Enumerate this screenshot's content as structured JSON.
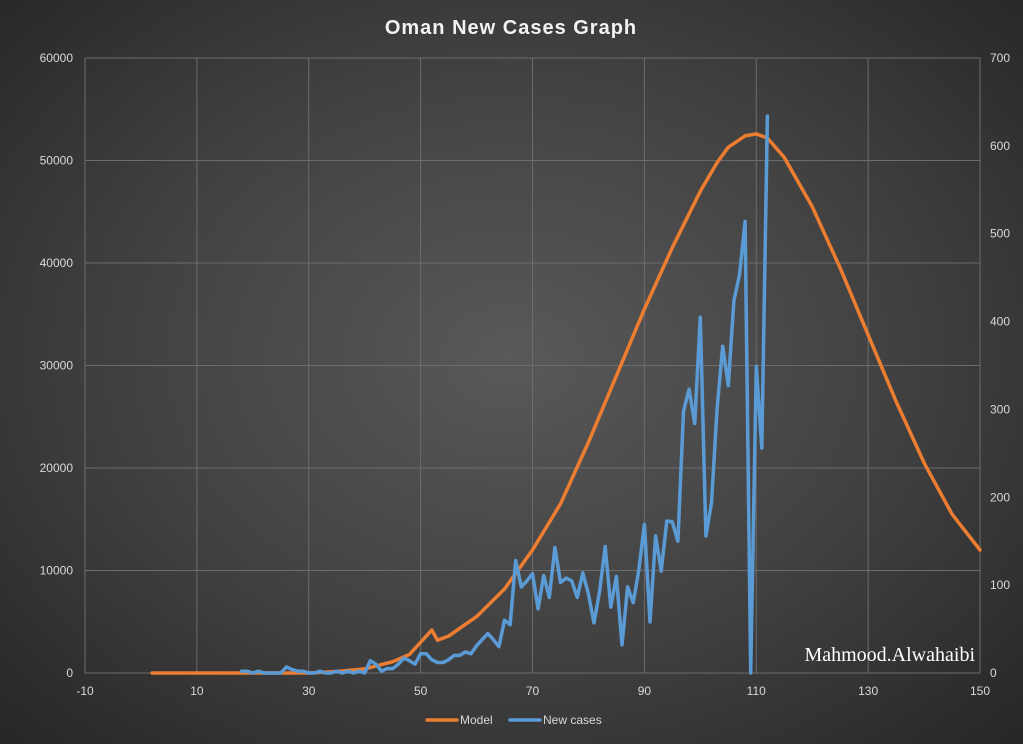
{
  "chart_data": {
    "type": "line",
    "title": "Oman New Cases Graph",
    "xlabel": "",
    "ylabel": "",
    "y2label": "",
    "xlim": [
      -10,
      150
    ],
    "x_ticks": [
      -10,
      10,
      30,
      50,
      70,
      90,
      110,
      130,
      150
    ],
    "ylim": [
      0,
      60000
    ],
    "y_ticks": [
      0,
      10000,
      20000,
      30000,
      40000,
      50000,
      60000
    ],
    "y2lim": [
      0,
      700
    ],
    "y2_ticks": [
      0,
      100,
      200,
      300,
      400,
      500,
      600,
      700
    ],
    "grid": true,
    "legend_position": "bottom",
    "series": [
      {
        "name": "Model",
        "axis": "left",
        "color": "#ED7D31",
        "x": [
          2,
          10,
          20,
          30,
          35,
          40,
          45,
          48,
          50,
          52,
          53,
          55,
          60,
          65,
          70,
          75,
          80,
          85,
          90,
          95,
          100,
          103,
          105,
          108,
          110,
          112,
          115,
          120,
          125,
          130,
          135,
          140,
          145,
          150
        ],
        "y": [
          0,
          0,
          0,
          0,
          150,
          400,
          1100,
          1800,
          3000,
          4200,
          3200,
          3600,
          5500,
          8200,
          12000,
          16500,
          22500,
          29000,
          35500,
          41500,
          47000,
          49800,
          51300,
          52400,
          52600,
          52200,
          50300,
          45500,
          39500,
          33000,
          26500,
          20500,
          15500,
          12000
        ]
      },
      {
        "name": "New cases",
        "axis": "right",
        "color": "#5B9BD5",
        "x": [
          18,
          19,
          20,
          21,
          22,
          23,
          24,
          25,
          26,
          27,
          28,
          29,
          30,
          31,
          32,
          33,
          34,
          35,
          36,
          37,
          38,
          39,
          40,
          41,
          42,
          43,
          44,
          45,
          46,
          47,
          48,
          49,
          50,
          51,
          52,
          53,
          54,
          55,
          56,
          57,
          58,
          59,
          60,
          61,
          62,
          63,
          64,
          65,
          66,
          67,
          68,
          69,
          70,
          71,
          72,
          73,
          74,
          75,
          76,
          77,
          78,
          79,
          80,
          81,
          82,
          83,
          84,
          85,
          86,
          87,
          88,
          89,
          90,
          91,
          92,
          93,
          94,
          95,
          96,
          97,
          98,
          99,
          100,
          101,
          102,
          103,
          104,
          105,
          106,
          107,
          108,
          109,
          110,
          111,
          112
        ],
        "y": [
          2,
          2,
          0,
          2,
          0,
          0,
          0,
          0,
          7,
          4,
          2,
          2,
          0,
          0,
          2,
          0,
          0,
          2,
          0,
          2,
          0,
          2,
          0,
          14,
          10,
          2,
          5,
          5,
          10,
          17,
          14,
          10,
          22,
          22,
          15,
          12,
          12,
          15,
          20,
          20,
          24,
          22,
          31,
          38,
          45,
          38,
          30,
          60,
          55,
          128,
          98,
          105,
          113,
          73,
          111,
          86,
          143,
          103,
          108,
          105,
          86,
          114,
          90,
          57,
          93,
          144,
          75,
          110,
          32,
          98,
          80,
          117,
          169,
          58,
          156,
          116,
          173,
          172,
          150,
          298,
          323,
          284,
          405,
          156,
          194,
          301,
          372,
          327,
          424,
          453,
          514,
          0,
          349,
          256,
          634
        ]
      }
    ],
    "watermark": "Mahmood.Alwahaibi"
  }
}
